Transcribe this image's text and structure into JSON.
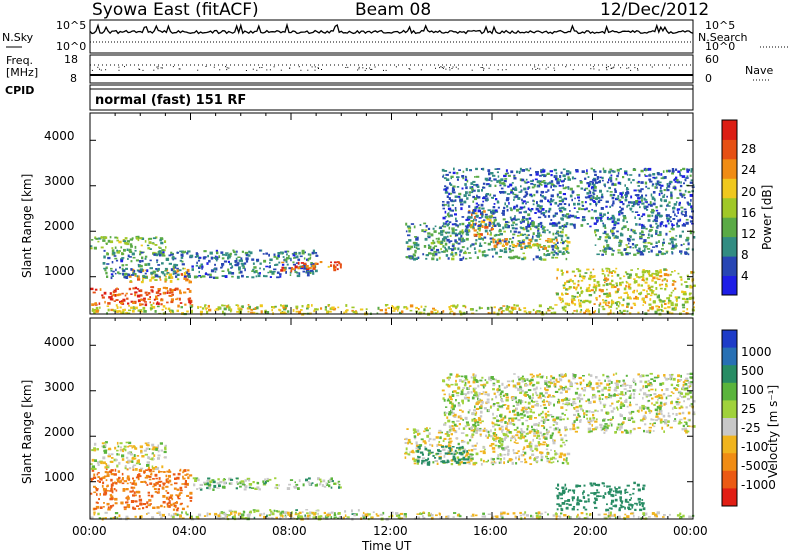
{
  "header": {
    "station": "Syowa East (fitACF)",
    "beam": "Beam 08",
    "date": "12/Dec/2012"
  },
  "top_panels": {
    "nsky_label": "N.Sky",
    "nsearch_label": "N.Search",
    "freq_label": "Freq.",
    "freq_unit": "[MHz]",
    "nave_label": "Nave",
    "cpid_label": "CPID",
    "cpid_value": "normal (fast) 151 RF",
    "noise_ticks_left": [
      "10^5",
      "10^0"
    ],
    "noise_ticks_right": [
      "10^5",
      "10^0"
    ],
    "freq_ticks_left": [
      "18",
      "8"
    ],
    "nave_ticks_right": [
      "60",
      "0"
    ]
  },
  "axes": {
    "ylabel": "Slant Range [km]",
    "xlabel": "Time UT",
    "yticks": [
      "1000",
      "2000",
      "3000",
      "4000"
    ],
    "xticks": [
      "00:00",
      "04:00",
      "08:00",
      "12:00",
      "16:00",
      "20:00",
      "00:00"
    ]
  },
  "power_colorbar": {
    "label": "Power [dB]",
    "ticks": [
      "4",
      "8",
      "12",
      "16",
      "20",
      "24",
      "28"
    ],
    "colors": [
      "#1e1ee6",
      "#2846b4",
      "#328c82",
      "#5aaa46",
      "#a0c828",
      "#f0c81e",
      "#f08c14",
      "#e65014",
      "#dc1e14"
    ]
  },
  "velocity_colorbar": {
    "label": "Velocity [m s⁻¹]",
    "ticks": [
      "1000",
      "500",
      "100",
      "25",
      "-25",
      "-100",
      "-500",
      "-1000"
    ],
    "colors": [
      "#1e3cc8",
      "#2870b4",
      "#288c64",
      "#5ab43c",
      "#a0d23c",
      "#c8c8c8",
      "#f0b41e",
      "#f08c14",
      "#eb5a14",
      "#e11e14"
    ]
  },
  "chart_data": [
    {
      "type": "heatmap",
      "title": "",
      "variable": "Power",
      "xlabel": "Time UT",
      "ylabel": "Slant Range [km]",
      "xlim": [
        0,
        24
      ],
      "ylim": [
        180,
        4600
      ],
      "clim": [
        0,
        32
      ],
      "regions": [
        {
          "t": [
            0.0,
            4.0
          ],
          "r": [
            400,
            800
          ],
          "v": 27
        },
        {
          "t": [
            1.5,
            4.0
          ],
          "r": [
            900,
            1200
          ],
          "v": 21
        },
        {
          "t": [
            0.0,
            3.0
          ],
          "r": [
            1500,
            1900
          ],
          "v": 13
        },
        {
          "t": [
            0.5,
            9.0
          ],
          "r": [
            1000,
            1600
          ],
          "v": 8
        },
        {
          "t": [
            7.5,
            10.0
          ],
          "r": [
            1150,
            1350
          ],
          "v": 26
        },
        {
          "t": [
            0.0,
            24.0
          ],
          "r": [
            200,
            400
          ],
          "v": 18
        },
        {
          "t": [
            12.5,
            19.0
          ],
          "r": [
            1400,
            2200
          ],
          "v": 10
        },
        {
          "t": [
            15.0,
            16.0
          ],
          "r": [
            1900,
            2500
          ],
          "v": 22
        },
        {
          "t": [
            16.0,
            19.0
          ],
          "r": [
            1650,
            1850
          ],
          "v": 20
        },
        {
          "t": [
            14.0,
            24.0
          ],
          "r": [
            2100,
            3400
          ],
          "v": 7
        },
        {
          "t": [
            18.5,
            24.0
          ],
          "r": [
            400,
            1200
          ],
          "v": 18
        },
        {
          "t": [
            20.0,
            24.0
          ],
          "r": [
            1500,
            2100
          ],
          "v": 10
        }
      ]
    },
    {
      "type": "heatmap",
      "title": "",
      "variable": "Velocity",
      "xlabel": "Time UT",
      "ylabel": "Slant Range [km]",
      "xlim": [
        0,
        24
      ],
      "ylim": [
        180,
        4600
      ],
      "clim": [
        -1000,
        1000
      ],
      "regions": [
        {
          "t": [
            0.0,
            4.0
          ],
          "r": [
            400,
            1300
          ],
          "v": -300
        },
        {
          "t": [
            0.0,
            3.0
          ],
          "r": [
            1300,
            1900
          ],
          "v": 0
        },
        {
          "t": [
            4.0,
            10.0
          ],
          "r": [
            850,
            1100
          ],
          "v": 60
        },
        {
          "t": [
            5.0,
            11.0
          ],
          "r": [
            200,
            400
          ],
          "v": 40
        },
        {
          "t": [
            0.0,
            24.0
          ],
          "r": [
            200,
            350
          ],
          "v": 0
        },
        {
          "t": [
            12.5,
            19.0
          ],
          "r": [
            1400,
            2200
          ],
          "v": 0
        },
        {
          "t": [
            13.0,
            15.0
          ],
          "r": [
            1400,
            1800
          ],
          "v": 300
        },
        {
          "t": [
            18.5,
            22.0
          ],
          "r": [
            400,
            1000
          ],
          "v": 200
        },
        {
          "t": [
            14.0,
            24.0
          ],
          "r": [
            2100,
            3400
          ],
          "v": 20
        }
      ]
    }
  ]
}
